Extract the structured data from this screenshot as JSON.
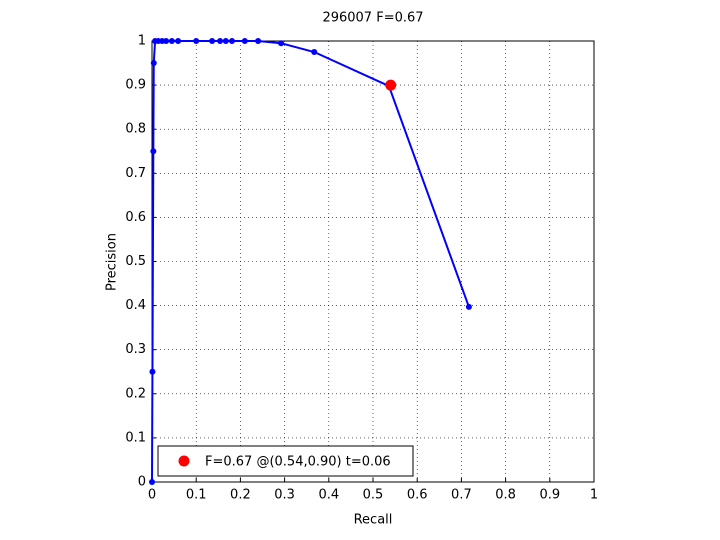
{
  "chart_data": {
    "type": "line",
    "title": "296007 F=0.67",
    "x_label": "Recall",
    "y_label": "Precision",
    "xlim": [
      0,
      1
    ],
    "ylim": [
      0,
      1
    ],
    "xticks": [
      0,
      0.1,
      0.2,
      0.3,
      0.4,
      0.5,
      0.6,
      0.7,
      0.8,
      0.9,
      1
    ],
    "yticks": [
      0,
      0.1,
      0.2,
      0.3,
      0.4,
      0.5,
      0.6,
      0.7,
      0.8,
      0.9,
      1
    ],
    "grid": true,
    "legend": "lower left",
    "series": [
      {
        "color": "#0000ff",
        "x": [
          0,
          0.001,
          0.003,
          0.004,
          0.007,
          0.014,
          0.023,
          0.032,
          0.045,
          0.059,
          0.1,
          0.136,
          0.154,
          0.167,
          0.181,
          0.21,
          0.24,
          0.292,
          0.367,
          0.536,
          0.717
        ],
        "values": [
          0,
          0.25,
          0.75,
          0.95,
          1,
          1,
          1,
          1,
          1,
          1,
          1,
          1,
          1,
          1,
          1,
          1,
          1,
          0.995,
          0.975,
          0.898,
          0.397
        ]
      },
      {
        "name": "F=0.67 @(0.54,0.90) t=0.06",
        "color": "#ff0000",
        "x": [
          0.54
        ],
        "values": [
          0.9
        ]
      }
    ]
  }
}
